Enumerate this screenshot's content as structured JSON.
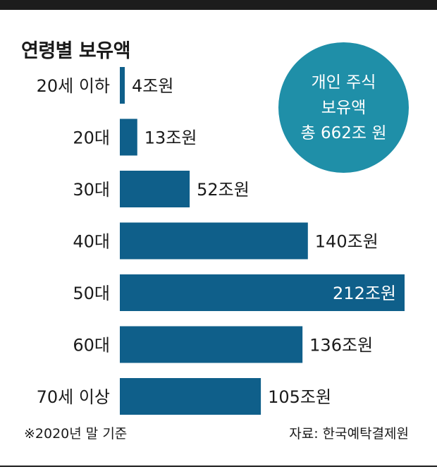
{
  "title": "연령별 보유액",
  "badge": {
    "line1": "개인 주식",
    "line2": "보유액",
    "line3": "총 662조 원"
  },
  "footer": {
    "note": "※2020년 말 기준",
    "source": "자료: 한국예탁결제원"
  },
  "colors": {
    "bar": "#0f5f8a",
    "badge": "#1f8fa8"
  },
  "chart_data": {
    "type": "bar",
    "orientation": "horizontal",
    "unit": "조원",
    "categories": [
      "20세 이하",
      "20대",
      "30대",
      "40대",
      "50대",
      "60대",
      "70세 이상"
    ],
    "values": [
      4,
      13,
      52,
      140,
      212,
      136,
      105
    ],
    "labels": [
      "4조원",
      "13조원",
      "52조원",
      "140조원",
      "212조원",
      "136조원",
      "105조원"
    ],
    "xlim": [
      0,
      212
    ],
    "grid": false,
    "legend": "none"
  }
}
